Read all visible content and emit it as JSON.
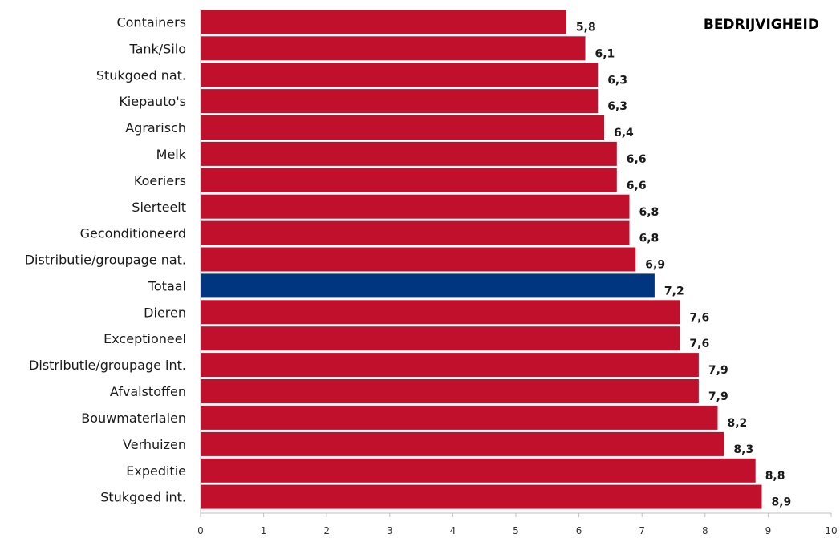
{
  "chart_data": {
    "type": "bar",
    "orientation": "horizontal",
    "title": "BEDRIJVIGHEID",
    "categories": [
      "Containers",
      "Tank/Silo",
      "Stukgoed nat.",
      "Kiepauto's",
      "Agrarisch",
      "Melk",
      "Koeriers",
      "Sierteelt",
      "Geconditioneerd",
      "Distributie/groupage nat.",
      "Totaal",
      "Dieren",
      "Exceptioneel",
      "Distributie/groupage int.",
      "Afvalstoffen",
      "Bouwmaterialen",
      "Verhuizen",
      "Expeditie",
      "Stukgoed int."
    ],
    "values": [
      5.8,
      6.1,
      6.3,
      6.3,
      6.4,
      6.6,
      6.6,
      6.8,
      6.8,
      6.9,
      7.2,
      7.6,
      7.6,
      7.9,
      7.9,
      8.2,
      8.3,
      8.8,
      8.9
    ],
    "value_labels": [
      "5,8",
      "6,1",
      "6,3",
      "6,3",
      "6,4",
      "6,6",
      "6,6",
      "6,8",
      "6,8",
      "6,9",
      "7,2",
      "7,6",
      "7,6",
      "7,9",
      "7,9",
      "8,2",
      "8,3",
      "8,8",
      "8,9"
    ],
    "xlim": [
      0,
      10
    ],
    "xticks": [
      0,
      1,
      2,
      3,
      4,
      5,
      6,
      7,
      8,
      9,
      10
    ],
    "xlabel": "",
    "ylabel": "",
    "grid": false,
    "legend": "none",
    "colors": {
      "default": "#c0102c",
      "highlight": "#003680",
      "axis": "#bfbfbf"
    },
    "highlight_category": "Totaal"
  }
}
